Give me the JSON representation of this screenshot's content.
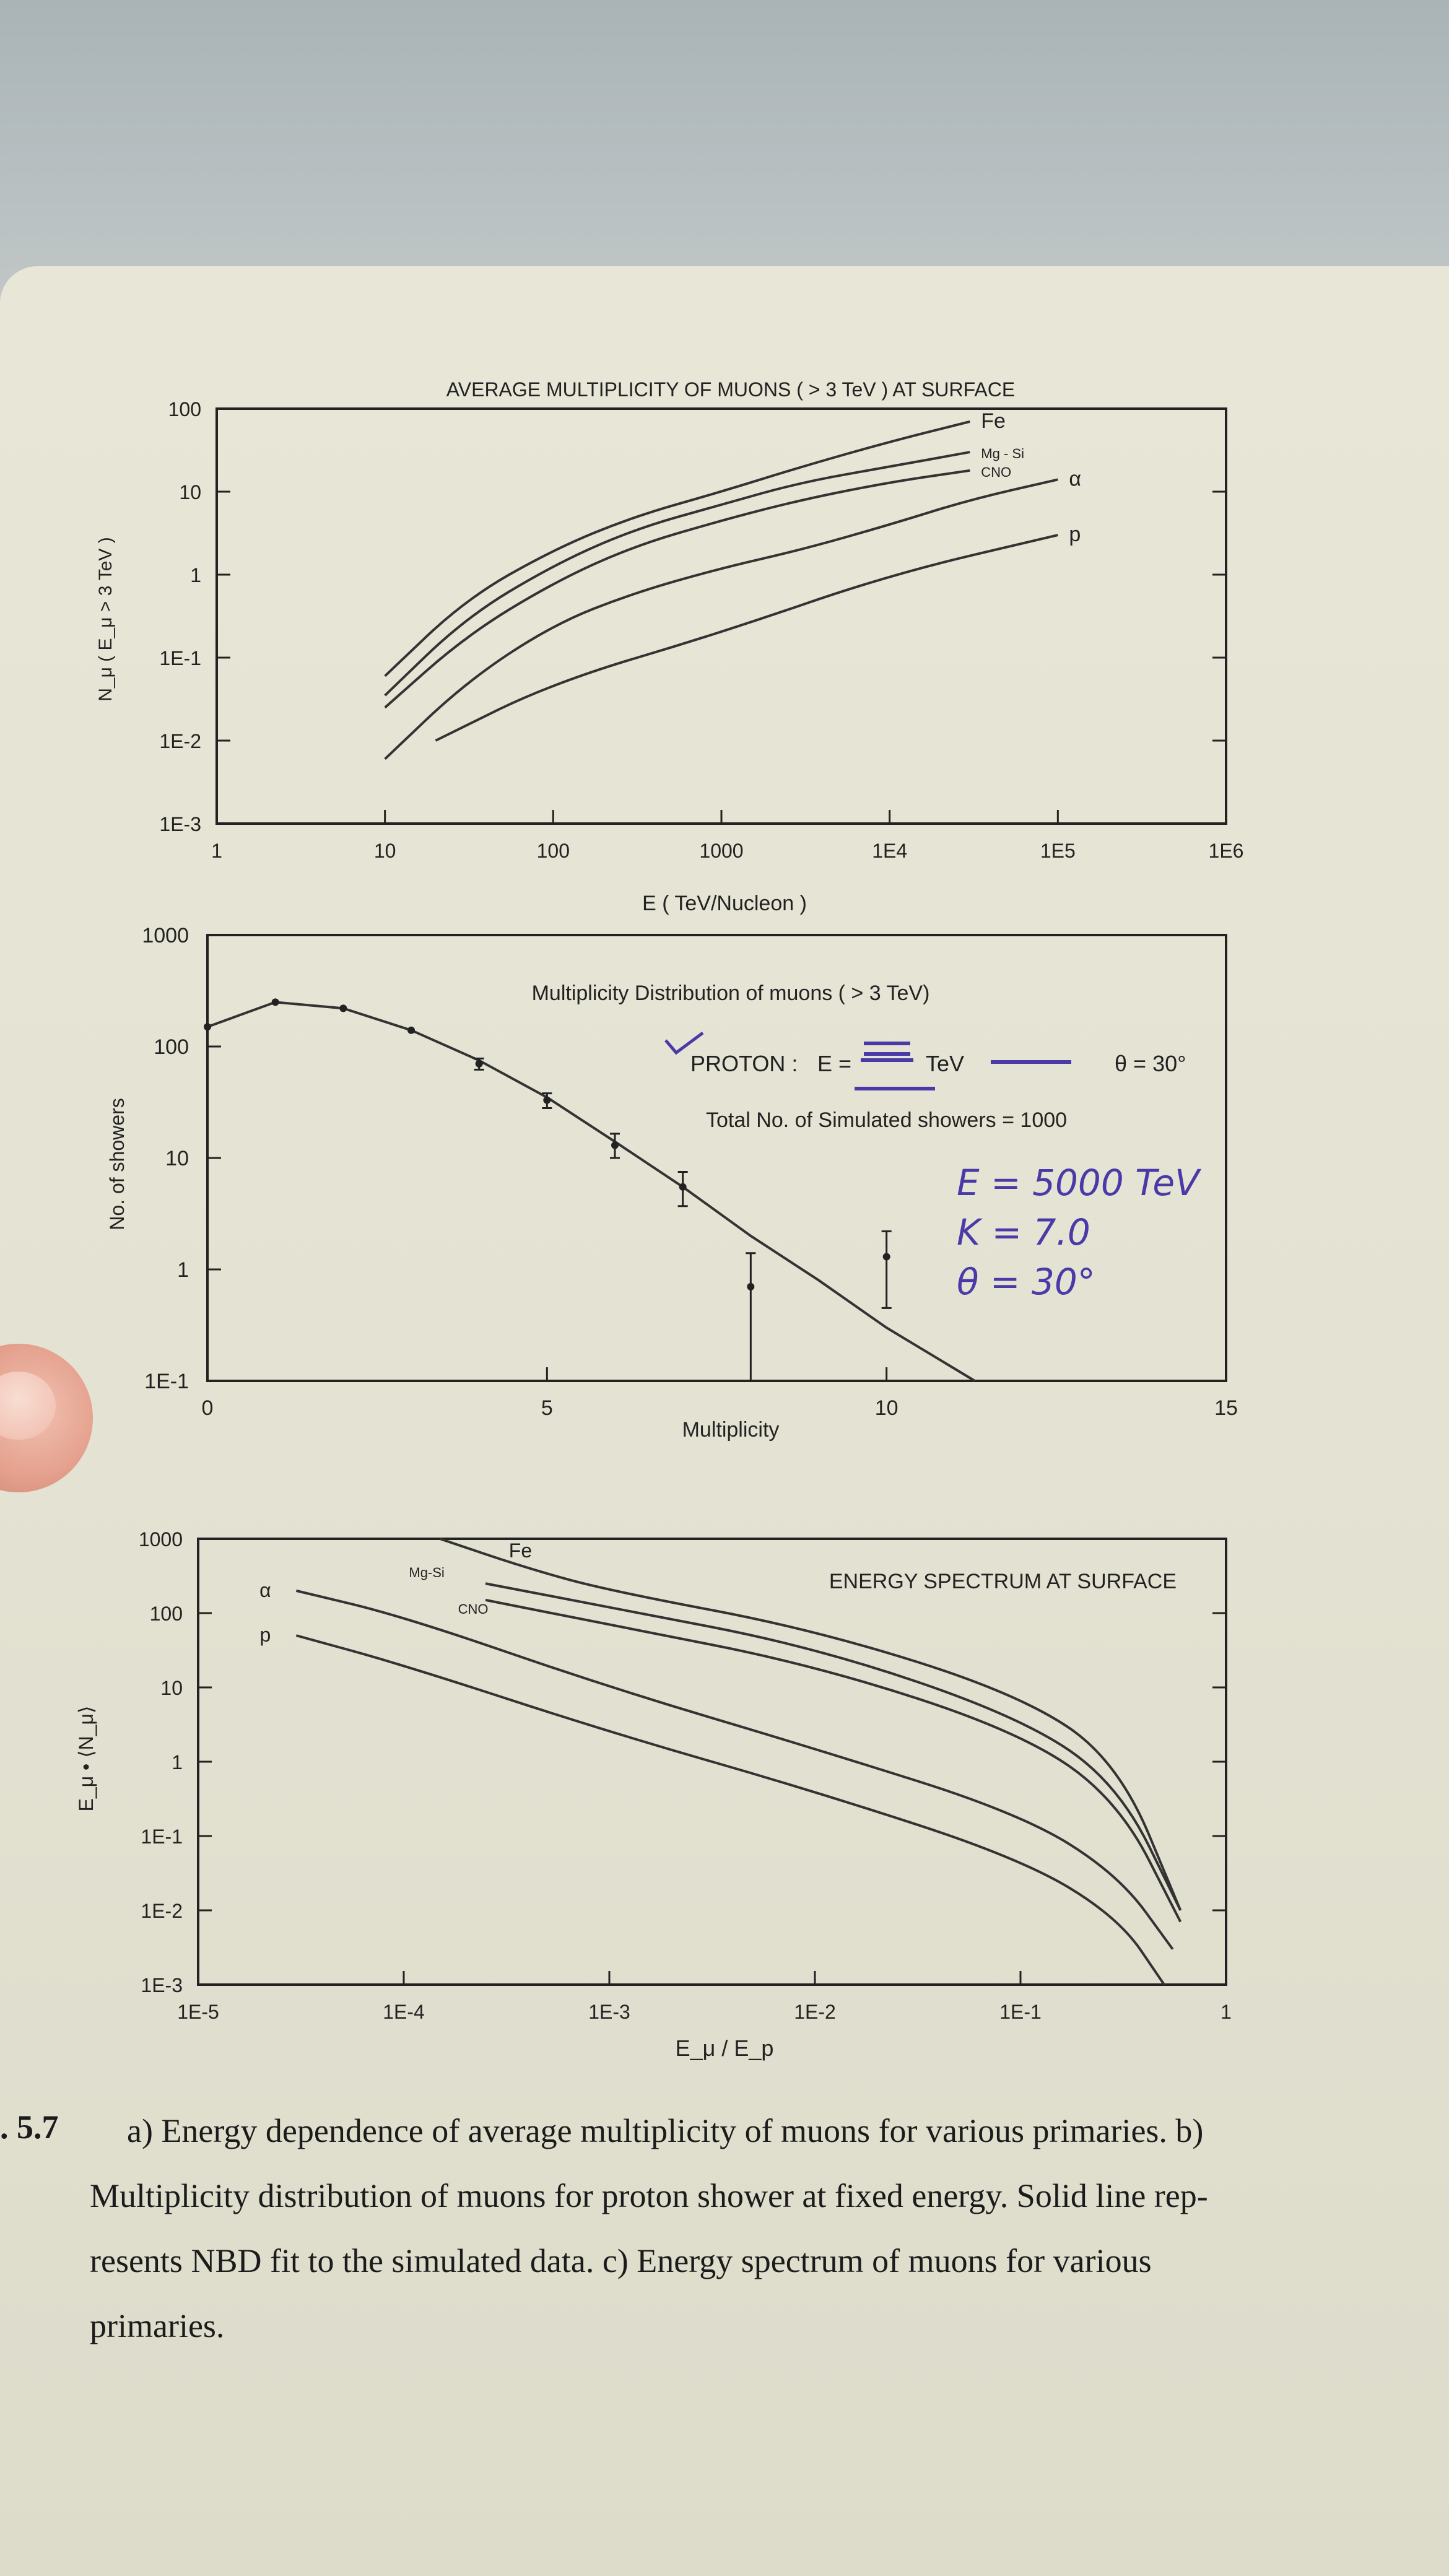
{
  "chart_data": [
    {
      "type": "line",
      "title": "AVERAGE MULTIPLICITY OF MUONS ( > 3 TeV ) AT SURFACE",
      "xlabel": "E ( TeV/Nucleon )",
      "ylabel": "N_μ ( E_μ > 3 TeV )",
      "xscale": "log",
      "yscale": "log",
      "xlim": [
        1,
        1000000
      ],
      "ylim": [
        0.001,
        100
      ],
      "xticks": [
        "1",
        "10",
        "100",
        "1000",
        "1E4",
        "1E5",
        "1E6"
      ],
      "yticks": [
        "1E-3",
        "1E-2",
        "1E-1",
        "1",
        "10",
        "100"
      ],
      "grid": false,
      "series": [
        {
          "name": "Fe",
          "x": [
            10,
            30,
            100,
            300,
            1000,
            3000,
            10000,
            30000
          ],
          "y": [
            0.06,
            0.5,
            2,
            5,
            10,
            20,
            40,
            70
          ]
        },
        {
          "name": "Mg - Si",
          "x": [
            10,
            30,
            100,
            300,
            1000,
            3000,
            10000,
            30000
          ],
          "y": [
            0.035,
            0.3,
            1.3,
            3.5,
            7,
            13,
            20,
            30
          ]
        },
        {
          "name": "CNO",
          "x": [
            10,
            30,
            100,
            300,
            1000,
            3000,
            10000,
            30000
          ],
          "y": [
            0.025,
            0.18,
            0.8,
            2.2,
            4.5,
            8,
            13,
            18
          ]
        },
        {
          "name": "α",
          "x": [
            10,
            30,
            100,
            300,
            1000,
            3000,
            10000,
            30000,
            100000
          ],
          "y": [
            0.006,
            0.05,
            0.25,
            0.6,
            1.2,
            2,
            4,
            8,
            14
          ]
        },
        {
          "name": "p",
          "x": [
            20,
            100,
            1000,
            10000,
            100000
          ],
          "y": [
            0.01,
            0.05,
            0.2,
            1,
            3
          ]
        }
      ]
    },
    {
      "type": "scatter",
      "title": "Multiplicity Distribution of muons ( > 3 TeV)",
      "xlabel": "Multiplicity",
      "ylabel": "No. of showers",
      "yscale": "log",
      "xlim": [
        0,
        15
      ],
      "ylim": [
        0.1,
        1000
      ],
      "xticks": [
        "0",
        "5",
        "10",
        "15"
      ],
      "yticks": [
        "1E-1",
        "1",
        "10",
        "100",
        "1000"
      ],
      "annotation": {
        "proton_label": "PROTON :",
        "e_label": "E =",
        "e_unit": "TeV",
        "theta": "θ = 30°",
        "total": "Total No. of Simulated showers = 1000"
      },
      "handwritten": [
        "E = 5000 TeV",
        "K = 7.0",
        "θ = 30°"
      ],
      "points": {
        "x": [
          0,
          1,
          2,
          3,
          4,
          5,
          6,
          7,
          8,
          10
        ],
        "y": [
          150,
          250,
          220,
          140,
          70,
          33,
          13,
          5.5,
          0.7,
          1.3
        ],
        "err_low": [
          150,
          250,
          220,
          140,
          62,
          28,
          10,
          3.7,
          0.1,
          0.45
        ],
        "err_high": [
          150,
          250,
          220,
          140,
          78,
          38,
          16.5,
          7.5,
          1.4,
          2.2
        ]
      },
      "fit": {
        "x": [
          0,
          1,
          2,
          3,
          4,
          5,
          6,
          7,
          8,
          9,
          10,
          11.3
        ],
        "y": [
          150,
          250,
          220,
          140,
          75,
          35,
          14,
          5.5,
          2,
          0.8,
          0.3,
          0.1
        ]
      }
    },
    {
      "type": "line",
      "title": "ENERGY SPECTRUM AT SURFACE",
      "xlabel": "E_μ / E_p",
      "ylabel": "E_μ • ⟨N_μ⟩",
      "xscale": "log",
      "yscale": "log",
      "xlim": [
        1e-05,
        1
      ],
      "ylim": [
        0.001,
        1000
      ],
      "xticks": [
        "1E-5",
        "1E-4",
        "1E-3",
        "1E-2",
        "1E-1",
        "1"
      ],
      "yticks": [
        "1E-3",
        "1E-2",
        "1E-1",
        "1",
        "10",
        "100",
        "1000"
      ],
      "series": [
        {
          "name": "Fe",
          "x": [
            0.00015,
            0.0004,
            0.001,
            0.01,
            0.1,
            0.3,
            0.6
          ],
          "y": [
            1000,
            400,
            200,
            60,
            8,
            1,
            0.01
          ]
        },
        {
          "name": "Mg-Si",
          "x": [
            0.00025,
            0.001,
            0.01,
            0.1,
            0.3,
            0.6
          ],
          "y": [
            250,
            120,
            35,
            4,
            0.5,
            0.01
          ]
        },
        {
          "name": "CNO",
          "x": [
            0.00025,
            0.001,
            0.01,
            0.1,
            0.3,
            0.6
          ],
          "y": [
            150,
            70,
            20,
            2.5,
            0.3,
            0.007
          ]
        },
        {
          "name": "α",
          "x": [
            3e-05,
            0.0001,
            0.001,
            0.01,
            0.1,
            0.3,
            0.55
          ],
          "y": [
            200,
            90,
            10,
            1.5,
            0.2,
            0.03,
            0.003
          ]
        },
        {
          "name": "p",
          "x": [
            3e-05,
            0.0001,
            0.001,
            0.01,
            0.1,
            0.3,
            0.5
          ],
          "y": [
            50,
            20,
            2.5,
            0.4,
            0.05,
            0.008,
            0.001
          ]
        }
      ]
    }
  ],
  "caption": {
    "fig_num": ". 5.7",
    "lines": [
      "a) Energy dependence of average multiplicity of muons for various primaries.  b)",
      "Multiplicity distribution of muons for proton shower at fixed energy.  Solid line rep-",
      "resents NBD fit to the simulated data.  c) Energy spectrum of muons for various",
      "primaries."
    ]
  },
  "colors": {
    "ink": "#222222",
    "handwriting": "#4a3aa8",
    "paper": "#e6e4d4"
  }
}
